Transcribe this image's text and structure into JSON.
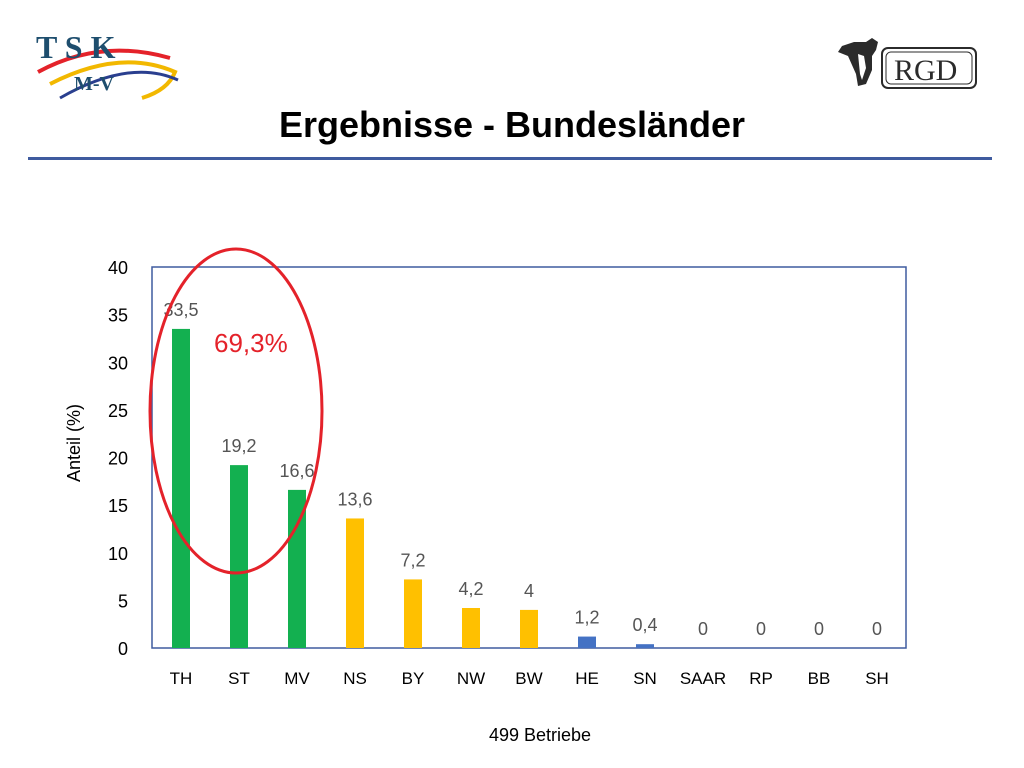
{
  "slide": {
    "title": "Ergebnisse - Bundesländer",
    "logo_left": {
      "letters": "T S K",
      "sub": "M-V"
    },
    "logo_right": {
      "text": "RGD"
    }
  },
  "colors": {
    "green": "#13b050",
    "yellow": "#ffc000",
    "blue": "#4472c4",
    "title_rule": "#3f5b9f",
    "annotation": "#e4222a",
    "plot_border": "#3f5b9f"
  },
  "chart_data": {
    "type": "bar",
    "title": "",
    "xlabel": "499 Betriebe",
    "ylabel": "Anteil (%)",
    "ylim": [
      0,
      40
    ],
    "yticks": [
      0,
      5,
      10,
      15,
      20,
      25,
      30,
      35,
      40
    ],
    "grid": false,
    "categories": [
      "TH",
      "ST",
      "MV",
      "NS",
      "BY",
      "NW",
      "BW",
      "HE",
      "SN",
      "SAAR",
      "RP",
      "BB",
      "SH"
    ],
    "values": [
      33.5,
      19.2,
      16.6,
      13.6,
      7.2,
      4.2,
      4,
      1.2,
      0.4,
      0,
      0,
      0,
      0
    ],
    "value_labels": [
      "33,5",
      "19,2",
      "16,6",
      "13,6",
      "7,2",
      "4,2",
      "4",
      "1,2",
      "0,4",
      "0",
      "0",
      "0",
      "0"
    ],
    "bar_colors": [
      "green",
      "green",
      "green",
      "yellow",
      "yellow",
      "yellow",
      "yellow",
      "blue",
      "blue",
      "blue",
      "blue",
      "blue",
      "blue"
    ],
    "annotation": {
      "text": "69,3%",
      "encircles": [
        "TH",
        "ST",
        "MV"
      ]
    }
  }
}
